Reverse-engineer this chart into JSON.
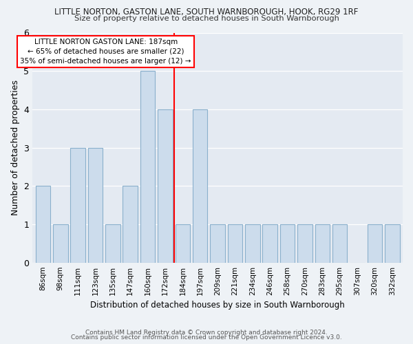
{
  "title1": "LITTLE NORTON, GASTON LANE, SOUTH WARNBOROUGH, HOOK, RG29 1RF",
  "title2": "Size of property relative to detached houses in South Warnborough",
  "xlabel": "Distribution of detached houses by size in South Warnborough",
  "ylabel": "Number of detached properties",
  "categories": [
    "86sqm",
    "98sqm",
    "111sqm",
    "123sqm",
    "135sqm",
    "147sqm",
    "160sqm",
    "172sqm",
    "184sqm",
    "197sqm",
    "209sqm",
    "221sqm",
    "234sqm",
    "246sqm",
    "258sqm",
    "270sqm",
    "283sqm",
    "295sqm",
    "307sqm",
    "320sqm",
    "332sqm"
  ],
  "values": [
    2,
    1,
    3,
    3,
    1,
    2,
    5,
    4,
    1,
    4,
    1,
    1,
    1,
    1,
    1,
    1,
    1,
    1,
    0,
    1,
    1
  ],
  "bar_color": "#ccdcec",
  "bar_edgecolor": "#8ab0cc",
  "redline_x": 7.5,
  "annotation_title": "LITTLE NORTON GASTON LANE: 187sqm",
  "annotation_line1": "← 65% of detached houses are smaller (22)",
  "annotation_line2": "35% of semi-detached houses are larger (12) →",
  "ylim": [
    0,
    6
  ],
  "yticks": [
    0,
    1,
    2,
    3,
    4,
    5,
    6
  ],
  "footer1": "Contains HM Land Registry data © Crown copyright and database right 2024.",
  "footer2": "Contains public sector information licensed under the Open Government Licence v3.0.",
  "bg_color": "#eef2f6",
  "plot_bg_color": "#e4eaf2"
}
